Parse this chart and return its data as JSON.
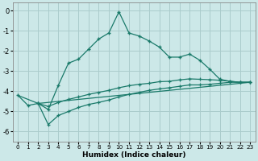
{
  "xlabel": "Humidex (Indice chaleur)",
  "background_color": "#cce8e8",
  "grid_color": "#aacccc",
  "line_color": "#1a7a6a",
  "xlim": [
    -0.5,
    23.5
  ],
  "ylim": [
    -6.5,
    0.4
  ],
  "yticks": [
    0,
    -1,
    -2,
    -3,
    -4,
    -5,
    -6
  ],
  "xticks": [
    0,
    1,
    2,
    3,
    4,
    5,
    6,
    7,
    8,
    9,
    10,
    11,
    12,
    13,
    14,
    15,
    16,
    17,
    18,
    19,
    20,
    21,
    22,
    23
  ],
  "line1_x": [
    0,
    1,
    2,
    3,
    4,
    5,
    6,
    7,
    8,
    9,
    10,
    11,
    12,
    13,
    14,
    15,
    16,
    17,
    18,
    19,
    20,
    21,
    22,
    23
  ],
  "line1_y": [
    -4.2,
    -4.7,
    -4.6,
    -4.9,
    -3.7,
    -2.6,
    -2.4,
    -1.9,
    -1.4,
    -1.1,
    -0.05,
    -1.1,
    -1.25,
    -1.5,
    -1.8,
    -2.3,
    -2.3,
    -2.15,
    -2.45,
    -2.9,
    -3.4,
    -3.5,
    -3.55,
    -3.55
  ],
  "line2_x": [
    2,
    3,
    4,
    5,
    6,
    7,
    8,
    9,
    10,
    11,
    12,
    13,
    14,
    15,
    16,
    17,
    18,
    19,
    20,
    21,
    22,
    23
  ],
  "line2_y": [
    -4.6,
    -4.75,
    -4.55,
    -4.4,
    -4.28,
    -4.15,
    -4.05,
    -3.95,
    -3.82,
    -3.72,
    -3.65,
    -3.6,
    -3.52,
    -3.5,
    -3.43,
    -3.38,
    -3.4,
    -3.42,
    -3.45,
    -3.5,
    -3.55,
    -3.55
  ],
  "line3_x": [
    2,
    3,
    4,
    5,
    6,
    7,
    8,
    9,
    10,
    11,
    12,
    13,
    14,
    15,
    16,
    17,
    18,
    19,
    20,
    21,
    22,
    23
  ],
  "line3_y": [
    -4.6,
    -5.65,
    -5.2,
    -5.0,
    -4.8,
    -4.65,
    -4.55,
    -4.43,
    -4.28,
    -4.15,
    -4.05,
    -3.95,
    -3.88,
    -3.82,
    -3.75,
    -3.68,
    -3.68,
    -3.65,
    -3.6,
    -3.55,
    -3.55,
    -3.55
  ],
  "line4_x": [
    0,
    2,
    23
  ],
  "line4_y": [
    -4.2,
    -4.6,
    -3.55
  ]
}
